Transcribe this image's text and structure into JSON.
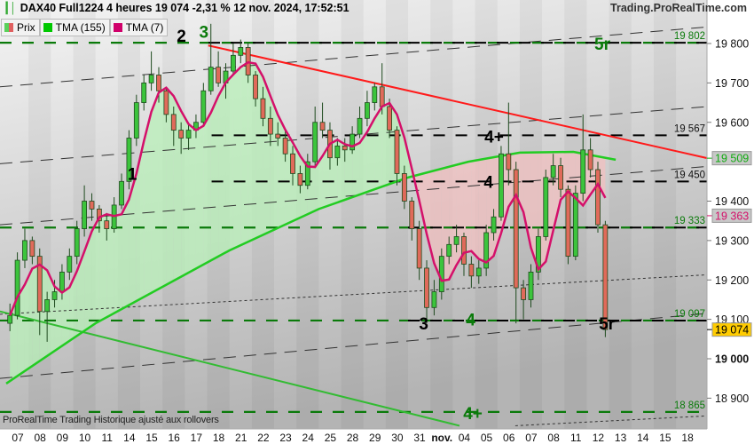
{
  "header": {
    "title": "DAX40 Full1224 4 heures 19 074 -2,31 % 12 nov. 2024, 17:52:51",
    "watermark": "Trading.ProRealTime.com",
    "footer": "ProRealTime Trading  Historique ajusté aux rollovers",
    "icon": "candlestick-icon"
  },
  "legend": [
    {
      "label": "Prix",
      "colors": [
        "#5ad15a",
        "#e06060"
      ]
    },
    {
      "label": "TMA (155)",
      "colors": [
        "#00c800"
      ]
    },
    {
      "label": "TMA (7)",
      "colors": [
        "#d0006a"
      ]
    }
  ],
  "colors": {
    "up": "#3cc43c",
    "down": "#e06a5a",
    "wick": "#1e4a1e",
    "tma155": "#22cc22",
    "tma7": "#d4106a",
    "trend": "#ff1a1a",
    "green_level": "#0a7a0a",
    "fill_up": "#b8f0b8",
    "fill_down": "#f2c0c0",
    "last_price_bg": "#ffcc00"
  },
  "chart_data": {
    "type": "candlestick",
    "ylim": [
      18830,
      19890
    ],
    "yticks": [
      {
        "v": 19800,
        "label": "19 800"
      },
      {
        "v": 19700,
        "label": "19 700"
      },
      {
        "v": 19600,
        "label": "19 600"
      },
      {
        "v": 19400,
        "label": "19 400"
      },
      {
        "v": 19300,
        "label": "19 300"
      },
      {
        "v": 19200,
        "label": "19 200"
      },
      {
        "v": 19100,
        "label": "19 100"
      },
      {
        "v": 19000,
        "label": "19 000",
        "bold": true
      },
      {
        "v": 18900,
        "label": "18 900"
      }
    ],
    "dates": [
      "07",
      "08",
      "09",
      "10",
      "11",
      "14",
      "15",
      "16",
      "17",
      "18",
      "21",
      "22",
      "23",
      "24",
      "25",
      "28",
      "29",
      "30",
      "31",
      "nov.",
      "04",
      "05",
      "06",
      "07",
      "08",
      "11",
      "12",
      "13",
      "14",
      "15",
      "18"
    ],
    "bars": [
      [
        19090,
        19140,
        19070,
        19110
      ],
      [
        19110,
        19270,
        19100,
        19250
      ],
      [
        19250,
        19330,
        19230,
        19300
      ],
      [
        19300,
        19310,
        19240,
        19260
      ],
      [
        19260,
        19280,
        19060,
        19120
      ],
      [
        19120,
        19170,
        19043,
        19150
      ],
      [
        19150,
        19200,
        19130,
        19170
      ],
      [
        19170,
        19240,
        19150,
        19220
      ],
      [
        19220,
        19280,
        19200,
        19260
      ],
      [
        19260,
        19350,
        19240,
        19330
      ],
      [
        19330,
        19440,
        19310,
        19400
      ],
      [
        19400,
        19420,
        19350,
        19380
      ],
      [
        19380,
        19390,
        19320,
        19350
      ],
      [
        19350,
        19370,
        19300,
        19330
      ],
      [
        19330,
        19410,
        19320,
        19390
      ],
      [
        19390,
        19470,
        19380,
        19450
      ],
      [
        19450,
        19580,
        19430,
        19560
      ],
      [
        19560,
        19670,
        19540,
        19650
      ],
      [
        19650,
        19720,
        19630,
        19700
      ],
      [
        19700,
        19780,
        19680,
        19720
      ],
      [
        19720,
        19740,
        19650,
        19680
      ],
      [
        19680,
        19690,
        19600,
        19620
      ],
      [
        19620,
        19640,
        19540,
        19580
      ],
      [
        19580,
        19600,
        19520,
        19560
      ],
      [
        19560,
        19600,
        19530,
        19580
      ],
      [
        19580,
        19620,
        19560,
        19600
      ],
      [
        19600,
        19700,
        19590,
        19680
      ],
      [
        19680,
        19850,
        19670,
        19740
      ],
      [
        19740,
        19780,
        19690,
        19700
      ],
      [
        19700,
        19750,
        19660,
        19730
      ],
      [
        19730,
        19800,
        19720,
        19770
      ],
      [
        19770,
        19810,
        19750,
        19790
      ],
      [
        19790,
        19800,
        19700,
        19720
      ],
      [
        19720,
        19730,
        19640,
        19660
      ],
      [
        19660,
        19690,
        19590,
        19610
      ],
      [
        19610,
        19640,
        19540,
        19570
      ],
      [
        19570,
        19600,
        19540,
        19560
      ],
      [
        19560,
        19580,
        19500,
        19520
      ],
      [
        19520,
        19540,
        19440,
        19470
      ],
      [
        19470,
        19490,
        19420,
        19440
      ],
      [
        19440,
        19520,
        19430,
        19500
      ],
      [
        19500,
        19640,
        19490,
        19600
      ],
      [
        19600,
        19650,
        19560,
        19580
      ],
      [
        19580,
        19600,
        19480,
        19510
      ],
      [
        19510,
        19560,
        19490,
        19540
      ],
      [
        19540,
        19560,
        19500,
        19530
      ],
      [
        19530,
        19590,
        19520,
        19570
      ],
      [
        19570,
        19640,
        19560,
        19610
      ],
      [
        19610,
        19680,
        19590,
        19650
      ],
      [
        19650,
        19700,
        19630,
        19690
      ],
      [
        19690,
        19750,
        19620,
        19640
      ],
      [
        19640,
        19660,
        19560,
        19580
      ],
      [
        19580,
        19590,
        19440,
        19470
      ],
      [
        19470,
        19490,
        19380,
        19400
      ],
      [
        19400,
        19410,
        19300,
        19330
      ],
      [
        19330,
        19350,
        19200,
        19230
      ],
      [
        19230,
        19250,
        19090,
        19130
      ],
      [
        19130,
        19200,
        19110,
        19170
      ],
      [
        19170,
        19280,
        19150,
        19260
      ],
      [
        19260,
        19310,
        19240,
        19290
      ],
      [
        19290,
        19340,
        19270,
        19310
      ],
      [
        19310,
        19320,
        19210,
        19240
      ],
      [
        19240,
        19260,
        19180,
        19210
      ],
      [
        19210,
        19250,
        19190,
        19230
      ],
      [
        19230,
        19340,
        19210,
        19320
      ],
      [
        19320,
        19380,
        19300,
        19360
      ],
      [
        19360,
        19540,
        19350,
        19520
      ],
      [
        19520,
        19650,
        19440,
        19480
      ],
      [
        19480,
        19500,
        19090,
        19180
      ],
      [
        19180,
        19200,
        19100,
        19150
      ],
      [
        19150,
        19240,
        19130,
        19220
      ],
      [
        19220,
        19330,
        19200,
        19310
      ],
      [
        19310,
        19480,
        19300,
        19460
      ],
      [
        19460,
        19520,
        19440,
        19490
      ],
      [
        19490,
        19510,
        19410,
        19430
      ],
      [
        19430,
        19440,
        19240,
        19260
      ],
      [
        19260,
        19440,
        19250,
        19420
      ],
      [
        19420,
        19620,
        19400,
        19530
      ],
      [
        19530,
        19560,
        19460,
        19480
      ],
      [
        19480,
        19500,
        19320,
        19340
      ],
      [
        19340,
        19350,
        19055,
        19074
      ]
    ],
    "tma155": [
      [
        0,
        18937
      ],
      [
        4,
        19090
      ],
      [
        10,
        19275
      ],
      [
        14,
        19380
      ],
      [
        18,
        19460
      ],
      [
        20.7,
        19500
      ],
      [
        23,
        19523
      ],
      [
        25.4,
        19525
      ],
      [
        27.3,
        19505
      ]
    ],
    "levels": [
      {
        "v": 19802,
        "label": "19 802",
        "style": "green"
      },
      {
        "v": 19567,
        "label": "19 567",
        "style": "black",
        "from": 9.2
      },
      {
        "v": 19450,
        "label": "19 450",
        "style": "black",
        "from": 9.2
      },
      {
        "v": 19333,
        "label": "19 333",
        "style": "green"
      },
      {
        "v": 19097,
        "label": "19 097",
        "style": "green"
      },
      {
        "v": 18865,
        "label": "18 865",
        "style": "green"
      }
    ],
    "trendlines": [
      {
        "kind": "resistance",
        "from": [
          9.05,
          19795
        ],
        "to": [
          31.4,
          19509
        ]
      },
      {
        "kind": "support",
        "from": [
          -0.28,
          19120
        ],
        "to": [
          20.3,
          18830
        ]
      }
    ],
    "channel": [
      {
        "from": [
          -0.28,
          19690
        ],
        "to": [
          31.4,
          19842
        ]
      },
      {
        "from": [
          -0.28,
          19495
        ],
        "to": [
          31.4,
          19640
        ]
      },
      {
        "from": [
          -0.28,
          19340
        ],
        "to": [
          31.4,
          19488
        ]
      },
      {
        "from": [
          -0.28,
          18950
        ],
        "to": [
          31.4,
          19115
        ]
      }
    ],
    "dotted": [
      {
        "from": [
          -0.28,
          19113
        ],
        "to": [
          31.4,
          19213
        ]
      },
      {
        "from": [
          22.8,
          18830
        ],
        "to": [
          31.4,
          18855
        ]
      }
    ],
    "wave_labels": [
      {
        "text": "2",
        "d": 7.85,
        "v": 19820,
        "color": "black"
      },
      {
        "text": "3",
        "d": 8.85,
        "v": 19830,
        "color": "green"
      },
      {
        "text": "1",
        "d": 5.65,
        "v": 19470,
        "color": "black"
      },
      {
        "text": "4+",
        "d": 21.85,
        "v": 19565,
        "color": "black"
      },
      {
        "text": "4",
        "d": 21.6,
        "v": 19450,
        "color": "black"
      },
      {
        "text": "3",
        "d": 18.7,
        "v": 19090,
        "color": "black"
      },
      {
        "text": "4",
        "d": 20.8,
        "v": 19100,
        "color": "green"
      },
      {
        "text": "5r",
        "d": 26.9,
        "v": 19090,
        "color": "black"
      },
      {
        "text": "5r",
        "d": 26.7,
        "v": 19800,
        "color": "green"
      },
      {
        "text": "4+",
        "d": 20.9,
        "v": 18862,
        "color": "green"
      }
    ],
    "price_tags": [
      {
        "v": 19509,
        "label": "19 509",
        "kind": "tma155"
      },
      {
        "v": 19363,
        "label": "19 363",
        "kind": "tma7"
      },
      {
        "v": 19074,
        "label": "19 074",
        "kind": "last"
      }
    ]
  }
}
